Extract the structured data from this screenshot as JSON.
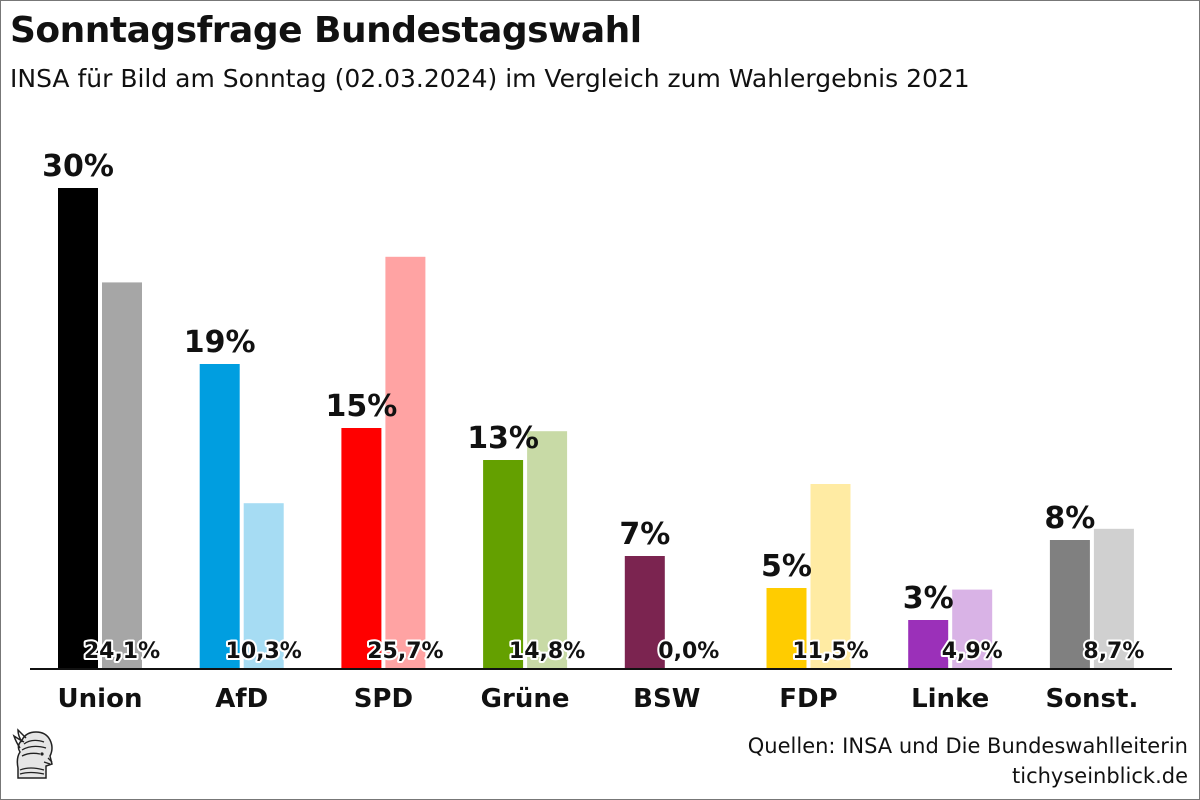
{
  "header": {
    "title": "Sonntagsfrage Bundestagswahl",
    "subtitle": "INSA für Bild am Sonntag (02.03.2024) im Vergleich zum Wahlergebnis 2021"
  },
  "footer": {
    "sources": "Quellen: INSA und Die Bundeswahlleiterin",
    "site": "tichyseinblick.de"
  },
  "chart_data": {
    "type": "bar",
    "title": "Sonntagsfrage Bundestagswahl",
    "subtitle": "INSA für Bild am Sonntag (02.03.2024) im Vergleich zum Wahlergebnis 2021",
    "categories": [
      "Union",
      "AfD",
      "SPD",
      "Grüne",
      "BSW",
      "FDP",
      "Linke",
      "Sonst."
    ],
    "series": [
      {
        "values": [
          30,
          19,
          15,
          13,
          7,
          5,
          3,
          8
        ],
        "labels": [
          "30%",
          "19%",
          "15%",
          "13%",
          "7%",
          "5%",
          "3%",
          "8%"
        ],
        "colors": [
          "#000000",
          "#009ee0",
          "#ff0000",
          "#64a000",
          "#7b2450",
          "#ffcc00",
          "#9b30b9",
          "#808080"
        ]
      },
      {
        "values": [
          24.1,
          10.3,
          25.7,
          14.8,
          0.0,
          11.5,
          4.9,
          8.7
        ],
        "labels": [
          "24,1%",
          "10,3%",
          "25,7%",
          "14,8%",
          "0,0%",
          "11,5%",
          "4,9%",
          "8,7%"
        ],
        "colors": [
          "#a6a6a6",
          "#a6dcf3",
          "#ffa3a3",
          "#c8daa6",
          "#d8b8c8",
          "#ffeba3",
          "#d9b3e6",
          "#d0d0d0"
        ]
      }
    ],
    "ylim": [
      0,
      30
    ],
    "grid": false,
    "xlabel": "",
    "ylabel": ""
  }
}
